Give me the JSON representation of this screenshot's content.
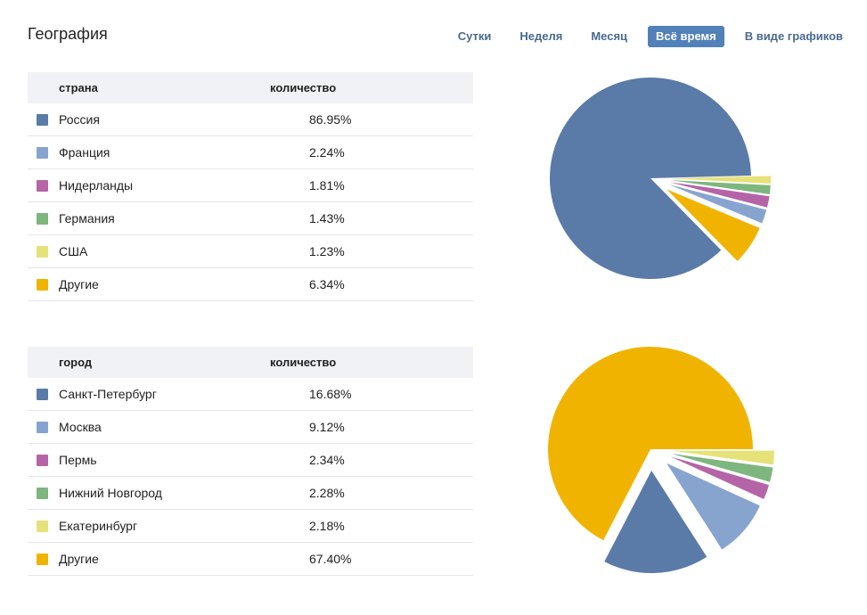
{
  "header": {
    "title": "География",
    "tabs": [
      {
        "label": "Сутки",
        "active": false
      },
      {
        "label": "Неделя",
        "active": false
      },
      {
        "label": "Месяц",
        "active": false
      },
      {
        "label": "Всё время",
        "active": true
      },
      {
        "label": "В виде графиков",
        "active": false
      }
    ]
  },
  "countries": {
    "col_name": "страна",
    "col_value": "количество",
    "rows": [
      {
        "name": "Россия",
        "value": "86.95%",
        "color": "#5a7ba8"
      },
      {
        "name": "Франция",
        "value": "2.24%",
        "color": "#87a4cf"
      },
      {
        "name": "Нидерланды",
        "value": "1.81%",
        "color": "#b565a7"
      },
      {
        "name": "Германия",
        "value": "1.43%",
        "color": "#7db67f"
      },
      {
        "name": "США",
        "value": "1.23%",
        "color": "#e6e27a"
      },
      {
        "name": "Другие",
        "value": "6.34%",
        "color": "#f0b400"
      }
    ]
  },
  "cities": {
    "col_name": "город",
    "col_value": "количество",
    "rows": [
      {
        "name": "Санкт-Петербург",
        "value": "16.68%",
        "color": "#5a7ba8"
      },
      {
        "name": "Москва",
        "value": "9.12%",
        "color": "#87a4cf"
      },
      {
        "name": "Пермь",
        "value": "2.34%",
        "color": "#b565a7"
      },
      {
        "name": "Нижний Новгород",
        "value": "2.28%",
        "color": "#7db67f"
      },
      {
        "name": "Екатеринбург",
        "value": "2.18%",
        "color": "#e6e27a"
      },
      {
        "name": "Другие",
        "value": "67.40%",
        "color": "#f0b400"
      }
    ]
  },
  "chart_data": [
    {
      "type": "pie",
      "categories": [
        "Россия",
        "Франция",
        "Нидерланды",
        "Германия",
        "США",
        "Другие"
      ],
      "values": [
        86.95,
        2.24,
        1.81,
        1.43,
        1.23,
        6.34
      ],
      "colors": [
        "#5a7ba8",
        "#87a4cf",
        "#b565a7",
        "#7db67f",
        "#e6e27a",
        "#f0b400"
      ]
    },
    {
      "type": "pie",
      "categories": [
        "Санкт-Петербург",
        "Москва",
        "Пермь",
        "Нижний Новгород",
        "Екатеринбург",
        "Другие"
      ],
      "values": [
        16.68,
        9.12,
        2.34,
        2.28,
        2.18,
        67.4
      ],
      "colors": [
        "#5a7ba8",
        "#87a4cf",
        "#b565a7",
        "#7db67f",
        "#e6e27a",
        "#f0b400"
      ]
    }
  ]
}
